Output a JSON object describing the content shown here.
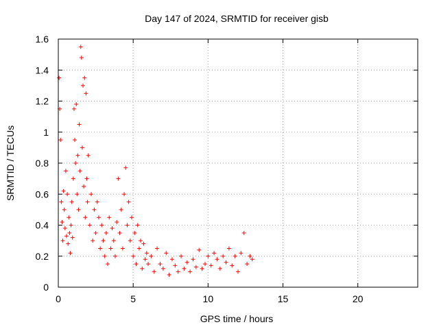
{
  "chart_data": {
    "type": "scatter",
    "title": "Day 147 of 2024, SRMTID for receiver gisb",
    "xlabel": "GPS time / hours",
    "ylabel": "SRMTID / TECUs",
    "xlim": [
      0,
      24
    ],
    "ylim": [
      0,
      1.6
    ],
    "xticks": [
      0,
      5,
      10,
      15,
      20
    ],
    "xtick_labels": [
      "0",
      "5",
      "10",
      "15",
      "20"
    ],
    "yticks": [
      0,
      0.2,
      0.4,
      0.6,
      0.8,
      1.0,
      1.2,
      1.4,
      1.6
    ],
    "ytick_labels": [
      "0",
      "0.2",
      "0.4",
      "0.6",
      "0.8",
      "1",
      "1.2",
      "1.4",
      "1.6"
    ],
    "grid": true,
    "legend": "none",
    "marker": "+",
    "series": [
      {
        "name": "gisb",
        "color": "#ff0000",
        "x": [
          0.05,
          0.1,
          0.15,
          0.2,
          0.25,
          0.3,
          0.35,
          0.4,
          0.45,
          0.5,
          0.55,
          0.6,
          0.65,
          0.7,
          0.75,
          0.8,
          0.85,
          0.9,
          0.95,
          1.0,
          1.05,
          1.1,
          1.15,
          1.2,
          1.25,
          1.3,
          1.35,
          1.4,
          1.45,
          1.5,
          1.55,
          1.6,
          1.65,
          1.7,
          1.75,
          1.8,
          1.85,
          1.9,
          1.95,
          2.0,
          2.1,
          2.2,
          2.3,
          2.4,
          2.5,
          2.6,
          2.7,
          2.8,
          2.9,
          3.0,
          3.1,
          3.2,
          3.3,
          3.4,
          3.5,
          3.6,
          3.7,
          3.8,
          3.9,
          4.0,
          4.1,
          4.2,
          4.3,
          4.4,
          4.5,
          4.6,
          4.7,
          4.8,
          4.9,
          5.0,
          5.1,
          5.2,
          5.3,
          5.4,
          5.5,
          5.6,
          5.7,
          5.8,
          5.9,
          6.0,
          6.2,
          6.4,
          6.6,
          6.8,
          7.0,
          7.2,
          7.4,
          7.6,
          7.8,
          8.0,
          8.2,
          8.4,
          8.6,
          8.8,
          9.0,
          9.2,
          9.4,
          9.6,
          9.8,
          10.0,
          10.2,
          10.4,
          10.6,
          10.8,
          11.0,
          11.2,
          11.4,
          11.6,
          11.8,
          12.0,
          12.2,
          12.4,
          12.6,
          12.8,
          12.95
        ],
        "y": [
          1.35,
          1.15,
          0.95,
          0.55,
          0.42,
          0.3,
          0.62,
          0.5,
          0.38,
          0.75,
          0.33,
          0.6,
          0.28,
          0.45,
          0.35,
          0.22,
          0.4,
          0.55,
          0.32,
          0.7,
          1.15,
          0.95,
          0.8,
          1.18,
          0.6,
          0.85,
          0.5,
          1.05,
          0.75,
          1.55,
          1.48,
          0.9,
          1.3,
          0.65,
          1.35,
          0.45,
          1.25,
          0.7,
          0.55,
          0.85,
          0.4,
          0.6,
          0.3,
          0.5,
          0.35,
          0.55,
          0.45,
          0.25,
          0.4,
          0.3,
          0.2,
          0.35,
          0.15,
          0.45,
          0.25,
          0.38,
          0.3,
          0.2,
          0.42,
          0.7,
          0.35,
          0.5,
          0.25,
          0.6,
          0.77,
          0.4,
          0.55,
          0.3,
          0.45,
          0.2,
          0.35,
          0.15,
          0.4,
          0.25,
          0.3,
          0.12,
          0.28,
          0.18,
          0.22,
          0.15,
          0.2,
          0.1,
          0.25,
          0.15,
          0.12,
          0.22,
          0.08,
          0.18,
          0.14,
          0.1,
          0.2,
          0.12,
          0.16,
          0.1,
          0.18,
          0.13,
          0.24,
          0.12,
          0.15,
          0.2,
          0.14,
          0.22,
          0.18,
          0.12,
          0.2,
          0.16,
          0.25,
          0.14,
          0.2,
          0.1,
          0.22,
          0.35,
          0.15,
          0.2,
          0.18
        ]
      }
    ]
  }
}
